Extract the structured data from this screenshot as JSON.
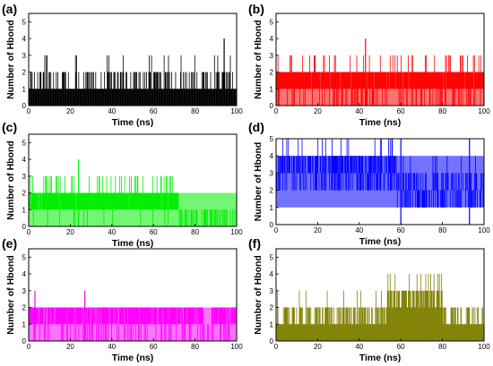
{
  "chart_data": [
    {
      "type": "bar",
      "panel_label": "(a)",
      "xlabel": "Time (ns)",
      "ylabel": "Number of Hbond",
      "xlim": [
        0,
        100
      ],
      "ylim": [
        0,
        5.5
      ],
      "xticks": [
        "0",
        "20",
        "40",
        "60",
        "80",
        "100"
      ],
      "yticks": [
        "0",
        "1",
        "2",
        "3",
        "4",
        "5"
      ],
      "color": "#000000",
      "segments": [
        {
          "x": [
            0,
            100
          ],
          "base": 1,
          "p_high": 0.3,
          "p_low": 0.45,
          "high": 2,
          "peak": 3,
          "p_peak": 0.04
        }
      ],
      "spikes": [
        {
          "x": 94,
          "y": 4
        }
      ],
      "dense_band": null
    },
    {
      "type": "bar",
      "panel_label": "(b)",
      "xlabel": "Time (ns)",
      "ylabel": "Number of Hbond",
      "xlim": [
        0,
        100
      ],
      "ylim": [
        0,
        5.5
      ],
      "xticks": [
        "0",
        "20",
        "40",
        "60",
        "80",
        "100"
      ],
      "yticks": [
        "0",
        "1",
        "2",
        "3",
        "4",
        "5"
      ],
      "color": "#ff0000",
      "segments": [
        {
          "x": [
            0,
            100
          ],
          "base": 1,
          "p_high": 0.85,
          "p_low": 0.25,
          "high": 2,
          "peak": 3,
          "p_peak": 0.12
        }
      ],
      "spikes": [
        {
          "x": 43,
          "y": 4
        }
      ],
      "dense_band": [
        0,
        2
      ]
    },
    {
      "type": "bar",
      "panel_label": "(c)",
      "xlabel": "Time (ns)",
      "ylabel": "Number of Hbond",
      "xlim": [
        0,
        100
      ],
      "ylim": [
        0,
        5.5
      ],
      "xticks": [
        "0",
        "20",
        "40",
        "60",
        "80",
        "100"
      ],
      "yticks": [
        "0",
        "1",
        "2",
        "3",
        "4",
        "5"
      ],
      "color": "#00ee00",
      "segments": [
        {
          "x": [
            0,
            72
          ],
          "base": 1,
          "p_high": 0.8,
          "p_low": 0.05,
          "high": 2,
          "peak": 3,
          "p_peak": 0.15
        },
        {
          "x": [
            72,
            100
          ],
          "base": 0,
          "p_high": 0.35,
          "p_low": 0.0,
          "high": 1,
          "peak": 1,
          "p_peak": 0.0
        }
      ],
      "spikes": [
        {
          "x": 24,
          "y": 4
        }
      ],
      "dense_band": [
        0,
        2
      ]
    },
    {
      "type": "bar",
      "panel_label": "(d)",
      "xlabel": "Time (ns)",
      "ylabel": "Number of Hbond",
      "xlim": [
        0,
        100
      ],
      "ylim": [
        0,
        5
      ],
      "xticks": [
        "0",
        "20",
        "40",
        "60",
        "80",
        "100"
      ],
      "yticks": [
        "0",
        "1",
        "2",
        "3",
        "4",
        "5"
      ],
      "color": "#0000ff",
      "segments": [
        {
          "x": [
            0,
            58
          ],
          "base": 3,
          "p_high": 0.55,
          "p_low": 0.35,
          "high": 4,
          "peak": 5,
          "p_peak": 0.12
        },
        {
          "x": [
            58,
            100
          ],
          "base": 2,
          "p_high": 0.35,
          "p_low": 0.4,
          "high": 3,
          "peak": 4,
          "p_peak": 0.06
        }
      ],
      "spikes": [
        {
          "x": 60,
          "y": 5
        },
        {
          "x": 93,
          "y": 5
        }
      ],
      "dense_band": [
        1,
        4
      ]
    },
    {
      "type": "bar",
      "panel_label": "(e)",
      "xlabel": "Time (ns)",
      "ylabel": "Number of Hbond",
      "xlim": [
        0,
        100
      ],
      "ylim": [
        0,
        5.5
      ],
      "xticks": [
        "0",
        "20",
        "40",
        "60",
        "80",
        "100"
      ],
      "yticks": [
        "0",
        "1",
        "2",
        "3",
        "4",
        "5"
      ],
      "color": "#ff00ff",
      "segments": [
        {
          "x": [
            0,
            84
          ],
          "base": 1,
          "p_high": 0.85,
          "p_low": 0.2,
          "high": 2,
          "peak": 2,
          "p_peak": 0.0
        },
        {
          "x": [
            84,
            88
          ],
          "base": 0,
          "p_high": 0.2,
          "p_low": 0.0,
          "high": 1,
          "peak": 1,
          "p_peak": 0.0
        },
        {
          "x": [
            88,
            100
          ],
          "base": 1,
          "p_high": 0.85,
          "p_low": 0.2,
          "high": 2,
          "peak": 2,
          "p_peak": 0.0
        }
      ],
      "spikes": [
        {
          "x": 3,
          "y": 3
        },
        {
          "x": 27,
          "y": 3
        }
      ],
      "dense_band": [
        0,
        2
      ]
    },
    {
      "type": "bar",
      "panel_label": "(f)",
      "xlabel": "Time (ns)",
      "ylabel": "Number of Hbond",
      "xlim": [
        0,
        100
      ],
      "ylim": [
        0,
        5.5
      ],
      "xticks": [
        "0",
        "20",
        "40",
        "60",
        "80",
        "100"
      ],
      "yticks": [
        "0",
        "1",
        "2",
        "3",
        "4",
        "5"
      ],
      "color": "#808000",
      "segments": [
        {
          "x": [
            0,
            53
          ],
          "base": 1,
          "p_high": 0.45,
          "p_low": 0.35,
          "high": 2,
          "peak": 3,
          "p_peak": 0.04
        },
        {
          "x": [
            53,
            80
          ],
          "base": 2,
          "p_high": 0.55,
          "p_low": 0.3,
          "high": 3,
          "peak": 4,
          "p_peak": 0.15
        },
        {
          "x": [
            80,
            100
          ],
          "base": 1,
          "p_high": 0.4,
          "p_low": 0.4,
          "high": 2,
          "peak": 2,
          "p_peak": 0.0
        }
      ],
      "spikes": [],
      "dense_band": null
    }
  ]
}
